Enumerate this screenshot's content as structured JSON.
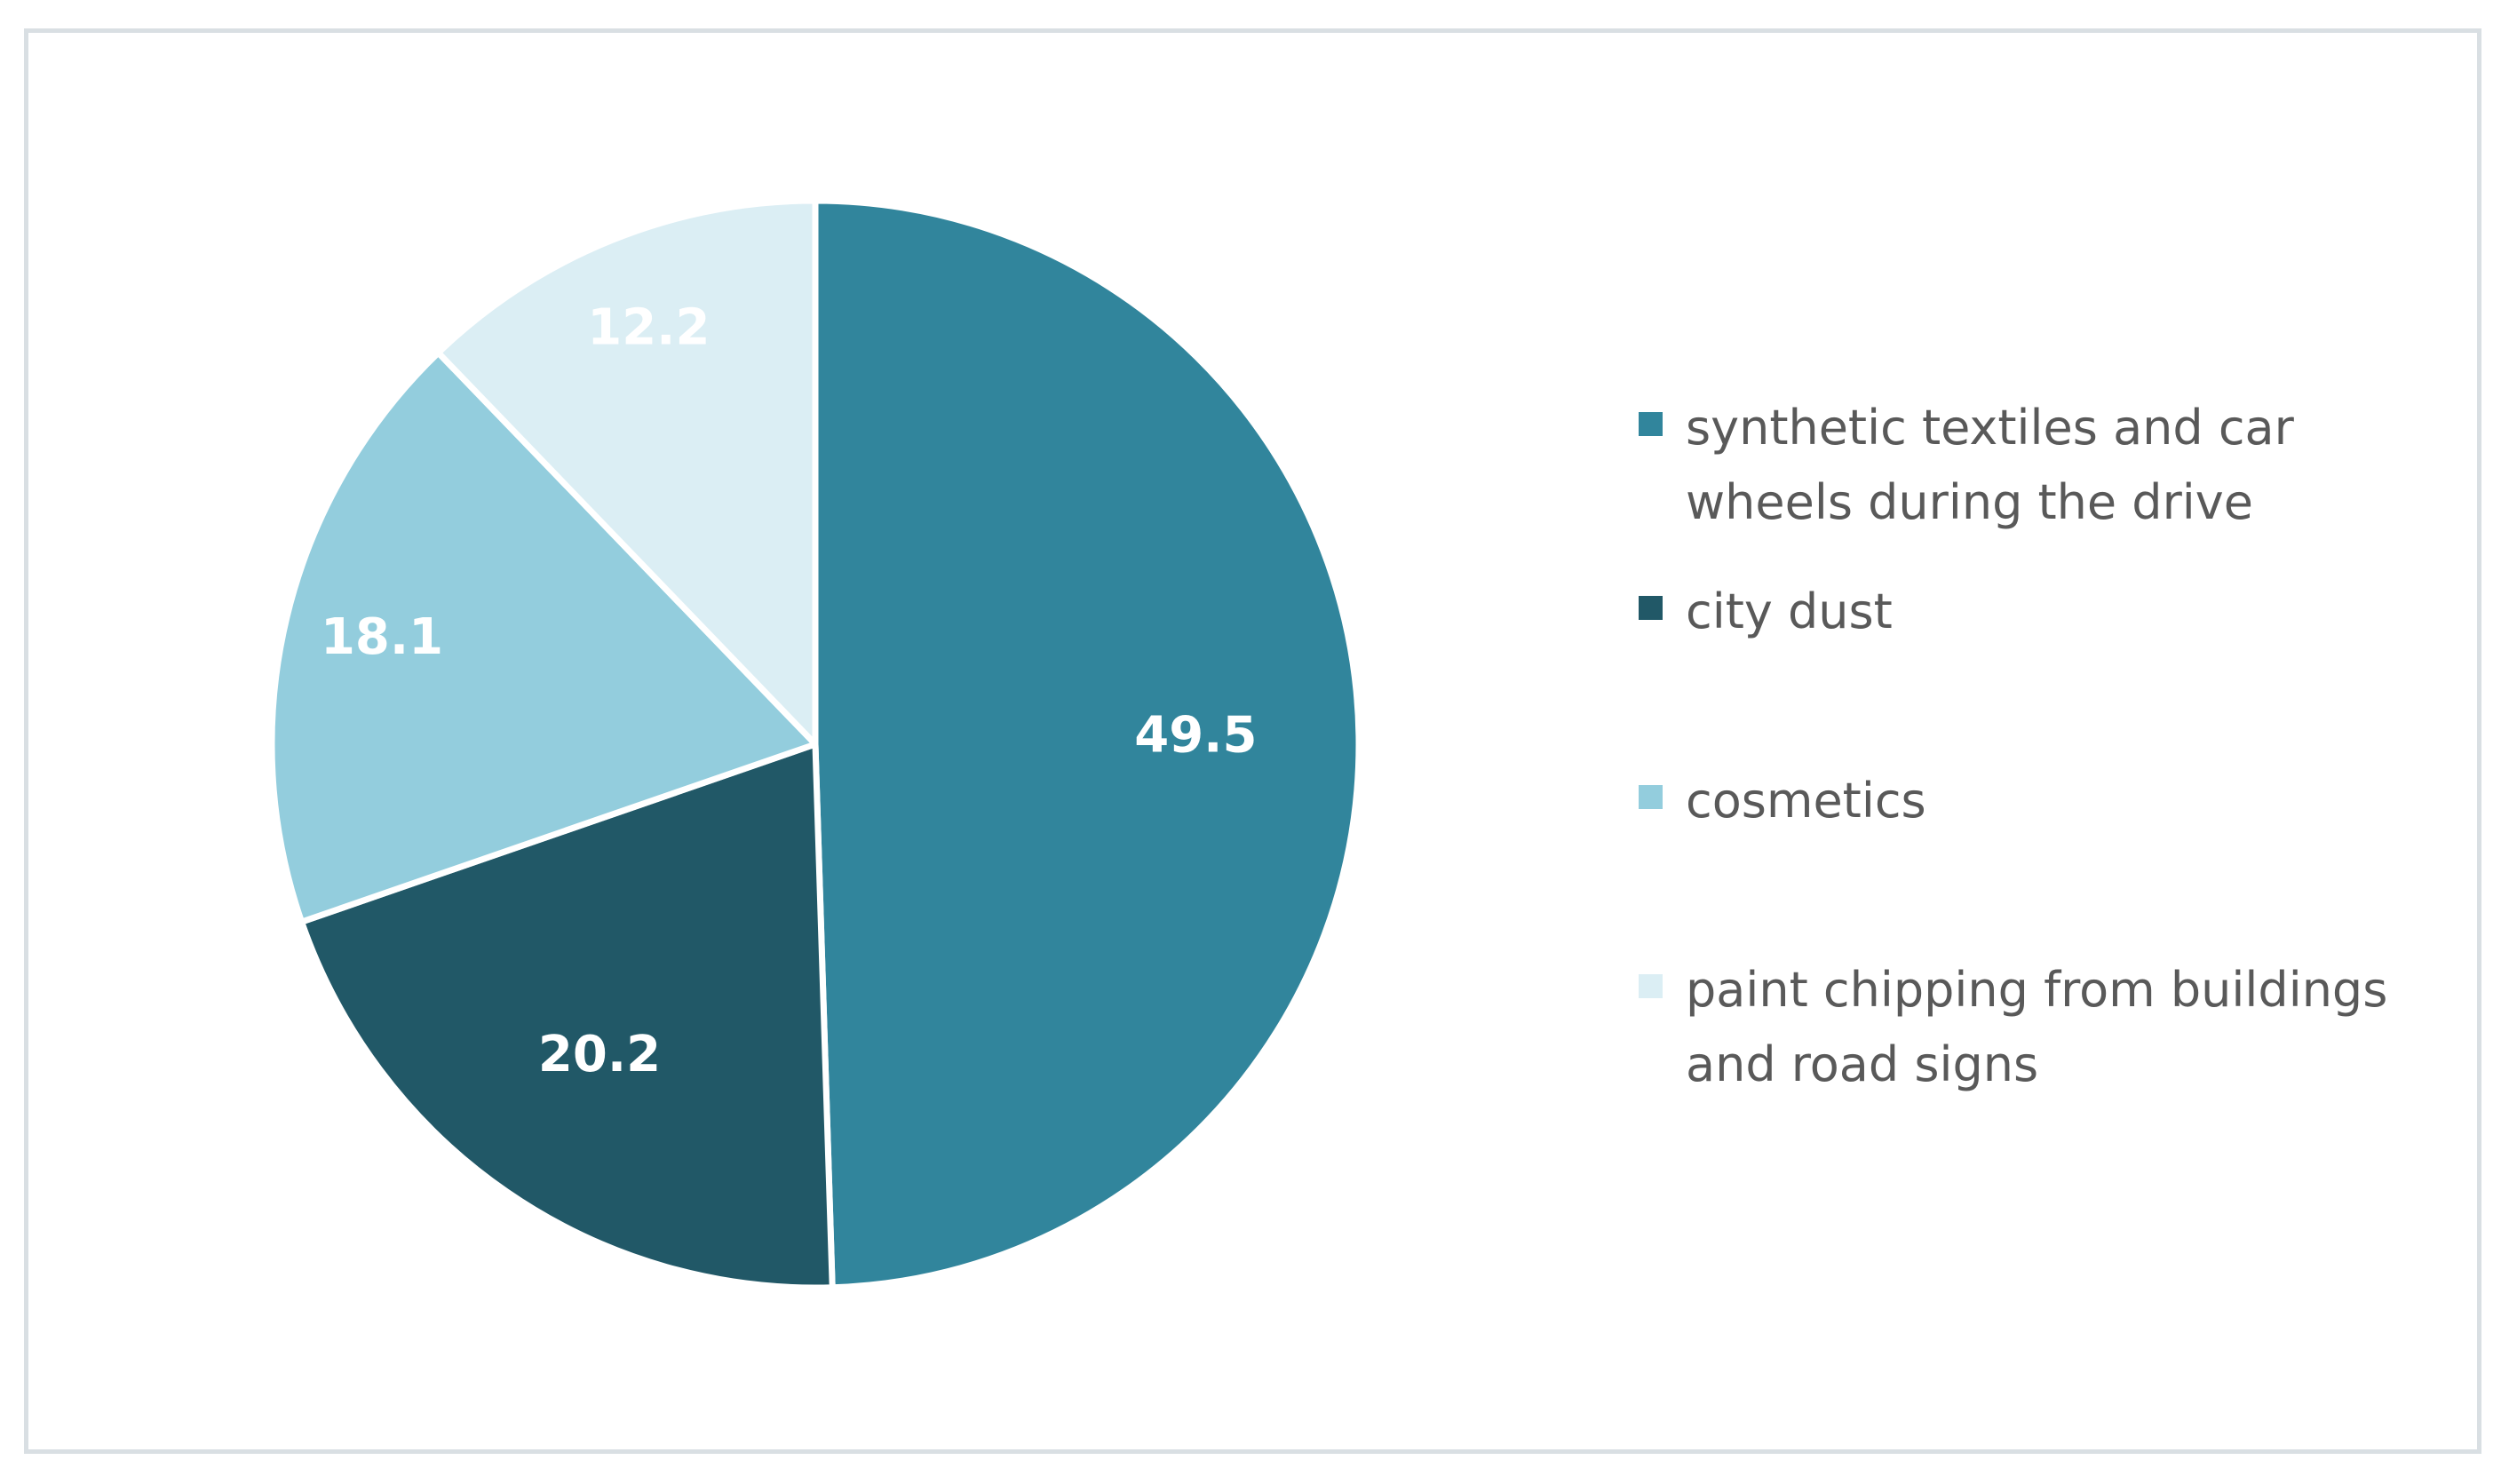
{
  "chart_data": {
    "type": "pie",
    "title": "",
    "start_angle_deg": 0,
    "direction": "clockwise",
    "series": [
      {
        "values": [
          49.5,
          20.2,
          18.1,
          12.2
        ],
        "labels": [
          "49.5",
          "20.2",
          "18.1",
          "12.2"
        ]
      }
    ],
    "categories": [
      "synthetic textiles and car wheels during the drive",
      "city dust",
      "cosmetics",
      "paint chipping from buildings and road signs"
    ],
    "colors": [
      "#31859c",
      "#215867",
      "#93cddd",
      "#dbeef4"
    ],
    "data_label_color": "#ffffff",
    "legend": {
      "position": "right",
      "items": [
        {
          "label": "synthetic textiles and car wheels during the drive",
          "color": "#31859c"
        },
        {
          "label": "city dust",
          "color": "#215867"
        },
        {
          "label": "cosmetics",
          "color": "#93cddd"
        },
        {
          "label": "paint chipping from buildings and road signs",
          "color": "#dbeef4"
        }
      ]
    }
  }
}
